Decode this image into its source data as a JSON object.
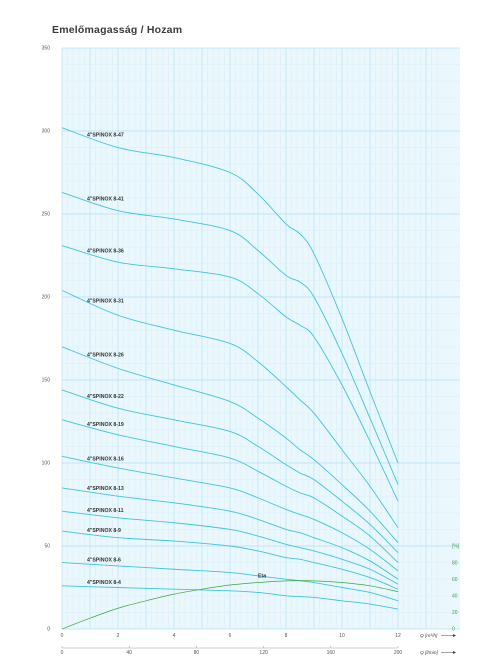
{
  "title": "Emelőmagasság / Hozam",
  "chart_data": {
    "type": "line",
    "title": "Emelőmagasság / Hozam",
    "grid": true,
    "ylim": [
      0,
      350
    ],
    "y_ticks": [
      0,
      50,
      100,
      150,
      200,
      250,
      300,
      350
    ],
    "x1_unit": "Q [m³/h]",
    "x1_lim": [
      0,
      12
    ],
    "x1_ticks": [
      0,
      2,
      4,
      6,
      8,
      10,
      12
    ],
    "x2_unit": "Q [l/min]",
    "x2_ticks": [
      0,
      40,
      80,
      120,
      160,
      200
    ],
    "eta_unit": "[%]",
    "eta_ticks": [
      0,
      20,
      40,
      60,
      80
    ],
    "eta_label": "Eta",
    "x": [
      0,
      2,
      4,
      6,
      7,
      8,
      8.5,
      9,
      10,
      11,
      12
    ],
    "series": [
      {
        "name": "4\"SPINOX 8-47",
        "values": [
          302,
          290,
          284,
          275,
          262,
          244,
          238,
          226,
          187,
          143,
          100
        ]
      },
      {
        "name": "4\"SPINOX 8-41",
        "values": [
          263,
          252,
          247,
          240,
          228,
          213,
          209,
          200,
          166,
          127,
          87
        ]
      },
      {
        "name": "4\"SPINOX 8-36",
        "values": [
          231,
          221,
          217,
          212,
          202,
          188,
          183,
          176,
          147,
          113,
          77
        ]
      },
      {
        "name": "4\"SPINOX 8-31",
        "values": [
          204,
          189,
          180,
          172,
          161,
          146,
          138,
          130,
          108,
          86,
          61
        ]
      },
      {
        "name": "4\"SPINOX 8-26",
        "values": [
          170,
          157,
          147,
          137,
          127,
          115,
          108,
          102,
          87,
          71,
          52
        ]
      },
      {
        "name": "4\"SPINOX 8-22",
        "values": [
          144,
          133,
          126,
          119,
          110,
          99,
          94,
          90,
          77,
          63,
          46
        ]
      },
      {
        "name": "4\"SPINOX 8-19",
        "values": [
          126,
          117,
          110,
          103,
          95,
          86,
          82,
          79,
          68,
          56,
          40
        ]
      },
      {
        "name": "4\"SPINOX 8-16",
        "values": [
          104,
          97,
          91,
          85,
          79,
          72,
          69,
          66,
          58,
          48,
          35
        ]
      },
      {
        "name": "4\"SPINOX 8-13",
        "values": [
          85,
          80,
          76,
          71,
          66,
          60,
          58,
          55,
          49,
          41,
          30
        ]
      },
      {
        "name": "4\"SPINOX 8-11",
        "values": [
          71,
          67,
          64,
          60,
          56,
          51,
          49,
          47,
          42,
          36,
          27
        ]
      },
      {
        "name": "4\"SPINOX 8-9",
        "values": [
          59,
          55,
          53,
          50,
          47,
          43,
          42,
          40,
          36,
          31,
          24
        ]
      },
      {
        "name": "4\"SPINOX 8-6",
        "values": [
          40,
          38,
          36,
          34,
          32,
          30,
          29,
          28,
          25,
          22,
          17
        ]
      },
      {
        "name": "4\"SPINOX 8-4",
        "values": [
          26,
          25,
          24,
          23,
          22,
          20,
          19.5,
          19,
          17,
          15,
          12
        ]
      }
    ],
    "eta": {
      "x": [
        0,
        1,
        2,
        3,
        4,
        5,
        6,
        7,
        8,
        9,
        10,
        11,
        12
      ],
      "values": [
        0,
        13,
        25,
        34,
        42,
        48,
        53,
        56,
        58,
        58,
        56,
        52,
        45
      ]
    }
  },
  "colors": {
    "background": "#eaf7fd",
    "grid_major": "#b6e1f2",
    "grid_minor": "#d3eef8",
    "curve": "#3cc4de",
    "eta": "#3aa63a"
  }
}
